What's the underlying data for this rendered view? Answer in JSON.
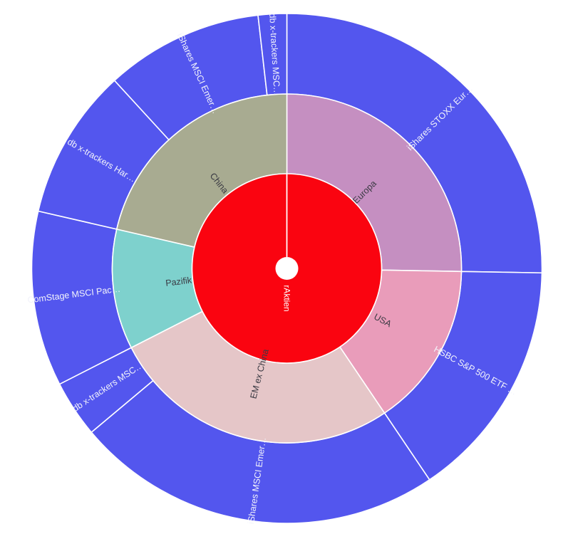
{
  "page": {
    "background": "#ffffff"
  },
  "chart_data": {
    "type": "pie",
    "subtype": "sunburst",
    "title": "",
    "angle_unit": "degrees_clockwise_from_12_oclock",
    "stroke_color": "#ffffff",
    "center": {
      "label": "rAktien",
      "color": "#fa0410",
      "text_color": "#ffffff",
      "hole_color": "#ffffff"
    },
    "rings": [
      {
        "name": "regions",
        "label_color": "#3a3a43",
        "segments": [
          {
            "label": "Europa",
            "color": "#c58fc1",
            "start": 0,
            "end": 91,
            "parent": "rAktien"
          },
          {
            "label": "USA",
            "color": "#e99cba",
            "start": 91,
            "end": 146,
            "parent": "rAktien"
          },
          {
            "label": "EM ex China",
            "color": "#e5c6c8",
            "start": 146,
            "end": 243,
            "parent": "rAktien"
          },
          {
            "label": "Pazifik",
            "color": "#7ed1cd",
            "start": 243,
            "end": 283,
            "parent": "rAktien"
          },
          {
            "label": "China",
            "color": "#a8ab91",
            "start": 283,
            "end": 360,
            "parent": "rAktien"
          }
        ]
      },
      {
        "name": "funds",
        "label_color": "#f2f3fb",
        "segments": [
          {
            "label": "iShares STOXX Eur…",
            "color": "#5356ee",
            "start": 0,
            "end": 91,
            "parent": "Europa"
          },
          {
            "label": "HSBC S&P 500 ETF …",
            "color": "#5356ee",
            "start": 91,
            "end": 146,
            "parent": "USA"
          },
          {
            "label": "iShares MSCI Emer…",
            "color": "#5356ee",
            "start": 146,
            "end": 230,
            "parent": "EM ex China"
          },
          {
            "label": "db x-trackers MSC…",
            "color": "#5356ee",
            "start": 230,
            "end": 243,
            "parent": "EM ex China"
          },
          {
            "label": "ComStage MSCI Pac…",
            "color": "#5356ee",
            "start": 243,
            "end": 283,
            "parent": "Pazifik"
          },
          {
            "label": "db x-trackers Har…",
            "color": "#5356ee",
            "start": 283,
            "end": 317.5,
            "parent": "China"
          },
          {
            "label": "iShares MSCI Emer…",
            "color": "#5356ee",
            "start": 317.5,
            "end": 353.5,
            "parent": "China"
          },
          {
            "label": "db x-trackers MSC…",
            "color": "#5356ee",
            "start": 353.5,
            "end": 360,
            "parent": "China"
          }
        ]
      }
    ]
  }
}
